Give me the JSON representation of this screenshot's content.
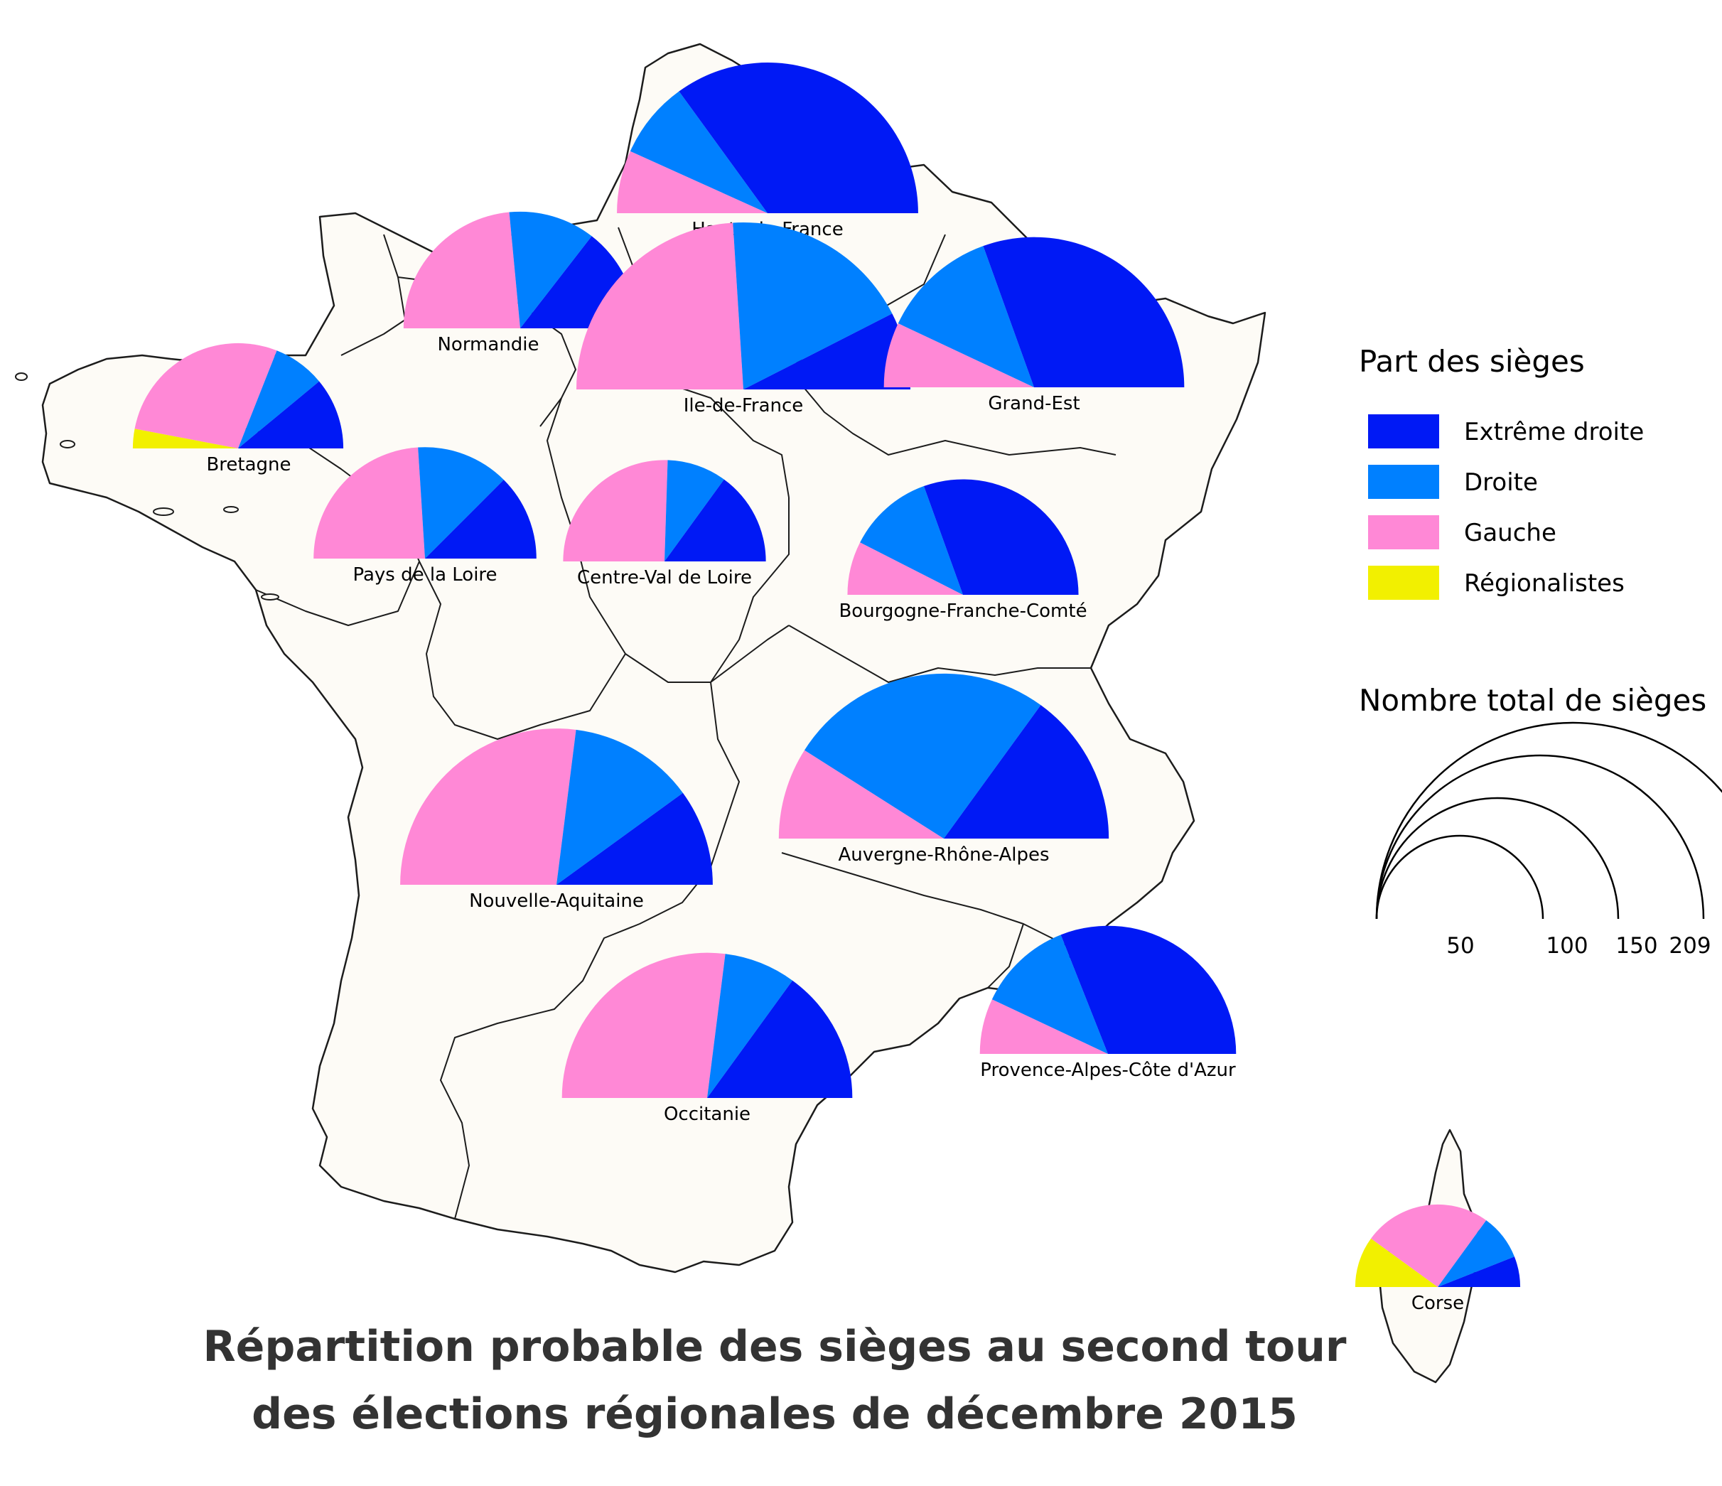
{
  "title_lines": [
    "Répartition probable des sièges au second tour",
    "des élections régionales de décembre 2015"
  ],
  "legend": {
    "title": "Part des sièges",
    "items": [
      {
        "key": "extreme_droite",
        "label": "Extrême droite",
        "color": "#0019f5"
      },
      {
        "key": "droite",
        "label": "Droite",
        "color": "#0080ff"
      },
      {
        "key": "gauche",
        "label": "Gauche",
        "color": "#ff88d6"
      },
      {
        "key": "regionalistes",
        "label": "Régionalistes",
        "color": "#f2f000"
      }
    ]
  },
  "size_legend": {
    "title": "Nombre total de sièges",
    "values": [
      "50",
      "100",
      "150",
      "209"
    ]
  },
  "colors": {
    "land": "#fdfbf6",
    "border": "#1c1c1c",
    "title": "#333333"
  },
  "chart_data": {
    "type": "pie",
    "subtype": "semicircle-proportional",
    "series_order": [
      "regionalistes",
      "gauche",
      "droite",
      "extreme_droite"
    ],
    "regions": [
      {
        "name": "Hauts-de-France",
        "total": 170,
        "shares": {
          "regionalistes": 0,
          "gauche": 0.135,
          "droite": 0.165,
          "extreme_droite": 0.7
        }
      },
      {
        "name": "Normandie",
        "total": 102,
        "shares": {
          "regionalistes": 0,
          "gauche": 0.47,
          "droite": 0.24,
          "extreme_droite": 0.29
        }
      },
      {
        "name": "Ile-de-France",
        "total": 209,
        "shares": {
          "regionalistes": 0,
          "gauche": 0.48,
          "droite": 0.37,
          "extreme_droite": 0.15
        }
      },
      {
        "name": "Grand-Est",
        "total": 169,
        "shares": {
          "regionalistes": 0,
          "gauche": 0.14,
          "droite": 0.25,
          "extreme_droite": 0.61
        }
      },
      {
        "name": "Bretagne",
        "total": 83,
        "shares": {
          "regionalistes": 0.06,
          "gauche": 0.56,
          "droite": 0.16,
          "extreme_droite": 0.22
        }
      },
      {
        "name": "Pays de la Loire",
        "total": 93,
        "shares": {
          "regionalistes": 0,
          "gauche": 0.48,
          "droite": 0.27,
          "extreme_droite": 0.25
        }
      },
      {
        "name": "Centre-Val de Loire",
        "total": 77,
        "shares": {
          "regionalistes": 0,
          "gauche": 0.51,
          "droite": 0.19,
          "extreme_droite": 0.3
        }
      },
      {
        "name": "Bourgogne-Franche-Comté",
        "total": 100,
        "shares": {
          "regionalistes": 0,
          "gauche": 0.15,
          "droite": 0.24,
          "extreme_droite": 0.61
        }
      },
      {
        "name": "Nouvelle-Aquitaine",
        "total": 183,
        "shares": {
          "regionalistes": 0,
          "gauche": 0.54,
          "droite": 0.26,
          "extreme_droite": 0.2
        }
      },
      {
        "name": "Auvergne-Rhône-Alpes",
        "total": 204,
        "shares": {
          "regionalistes": 0,
          "gauche": 0.18,
          "droite": 0.52,
          "extreme_droite": 0.3
        }
      },
      {
        "name": "Occitanie",
        "total": 158,
        "shares": {
          "regionalistes": 0,
          "gauche": 0.54,
          "droite": 0.16,
          "extreme_droite": 0.3
        }
      },
      {
        "name": "Provence-Alpes-Côte d'Azur",
        "total": 123,
        "shares": {
          "regionalistes": 0,
          "gauche": 0.14,
          "droite": 0.24,
          "extreme_droite": 0.62
        }
      },
      {
        "name": "Corse",
        "total": 51,
        "shares": {
          "regionalistes": 0.2,
          "gauche": 0.5,
          "droite": 0.18,
          "extreme_droite": 0.12
        }
      }
    ]
  }
}
